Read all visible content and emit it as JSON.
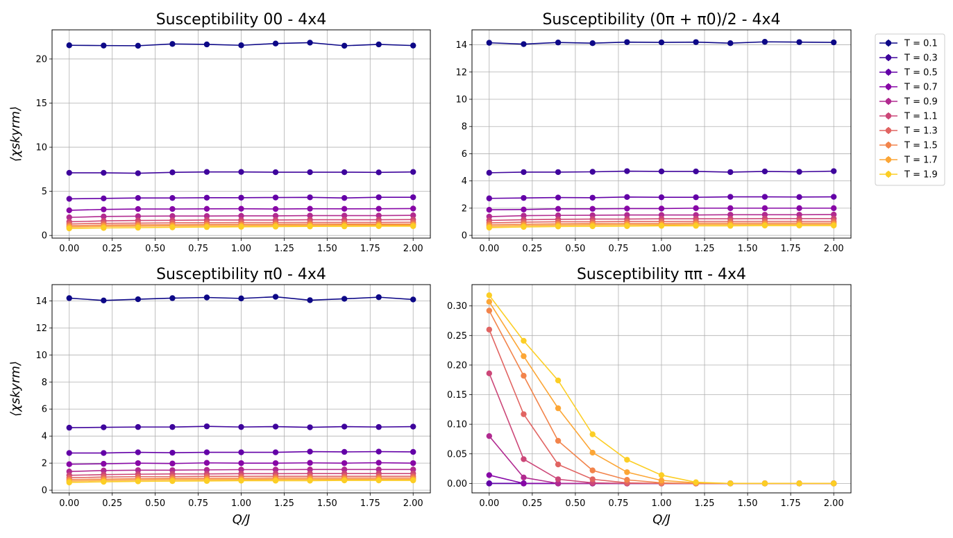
{
  "legend": {
    "placement": "right of figure",
    "entries": [
      "T = 0.1",
      "T = 0.3",
      "T = 0.5",
      "T = 0.7",
      "T = 0.9",
      "T = 1.1",
      "T = 1.3",
      "T = 1.5",
      "T = 1.7",
      "T = 1.9"
    ]
  },
  "series_colors": [
    "#0d0887",
    "#3e049c",
    "#6300a7",
    "#8707a6",
    "#b12a90",
    "#cc4778",
    "#e16462",
    "#f2844b",
    "#fca636",
    "#fcce25"
  ],
  "chart_data": [
    {
      "type": "line",
      "title": "Susceptibility 00 - 4x4",
      "xlabel": "",
      "ylabel": "⟨χskyrm⟩",
      "grid": true,
      "x": [
        0.0,
        0.2,
        0.4,
        0.6,
        0.8,
        1.0,
        1.2,
        1.4,
        1.6,
        1.8,
        2.0
      ],
      "xlim": [
        -0.1,
        2.1
      ],
      "ylim": [
        -0.3,
        23.3
      ],
      "xticks": [
        "0.00",
        "0.25",
        "0.50",
        "0.75",
        "1.00",
        "1.25",
        "1.50",
        "1.75",
        "2.00"
      ],
      "yticks": [
        "0",
        "5",
        "10",
        "15",
        "20"
      ],
      "series": [
        {
          "name": "T = 0.1",
          "values": [
            21.55,
            21.52,
            21.5,
            21.7,
            21.65,
            21.55,
            21.75,
            21.85,
            21.5,
            21.65,
            21.52
          ]
        },
        {
          "name": "T = 0.3",
          "values": [
            7.1,
            7.1,
            7.05,
            7.15,
            7.2,
            7.2,
            7.17,
            7.17,
            7.17,
            7.15,
            7.2
          ]
        },
        {
          "name": "T = 0.5",
          "values": [
            4.15,
            4.2,
            4.25,
            4.25,
            4.28,
            4.28,
            4.3,
            4.32,
            4.25,
            4.33,
            4.33
          ]
        },
        {
          "name": "T = 0.7",
          "values": [
            2.85,
            2.95,
            3.0,
            3.0,
            3.02,
            3.03,
            3.0,
            3.03,
            3.02,
            3.03,
            3.05
          ]
        },
        {
          "name": "T = 0.9",
          "values": [
            2.05,
            2.15,
            2.18,
            2.2,
            2.2,
            2.22,
            2.22,
            2.25,
            2.25,
            2.25,
            2.28
          ]
        },
        {
          "name": "T = 1.1",
          "values": [
            1.55,
            1.65,
            1.7,
            1.72,
            1.75,
            1.75,
            1.75,
            1.78,
            1.78,
            1.78,
            1.8
          ]
        },
        {
          "name": "T = 1.3",
          "values": [
            1.3,
            1.38,
            1.4,
            1.43,
            1.45,
            1.47,
            1.47,
            1.48,
            1.48,
            1.48,
            1.5
          ]
        },
        {
          "name": "T = 1.5",
          "values": [
            1.1,
            1.17,
            1.2,
            1.22,
            1.25,
            1.27,
            1.28,
            1.3,
            1.3,
            1.3,
            1.3
          ]
        },
        {
          "name": "T = 1.7",
          "values": [
            0.95,
            1.02,
            1.05,
            1.08,
            1.1,
            1.12,
            1.15,
            1.15,
            1.17,
            1.17,
            1.18
          ]
        },
        {
          "name": "T = 1.9",
          "values": [
            0.8,
            0.85,
            0.88,
            0.92,
            0.95,
            0.98,
            1.0,
            1.02,
            1.03,
            1.05,
            1.05
          ]
        }
      ]
    },
    {
      "type": "line",
      "title": "Susceptibility (0π + π0)/2 - 4x4",
      "xlabel": "",
      "ylabel": "",
      "grid": true,
      "x": [
        0.0,
        0.2,
        0.4,
        0.6,
        0.8,
        1.0,
        1.2,
        1.4,
        1.6,
        1.8,
        2.0
      ],
      "xlim": [
        -0.1,
        2.1
      ],
      "ylim": [
        -0.2,
        15.1
      ],
      "xticks": [
        "0.00",
        "0.25",
        "0.50",
        "0.75",
        "1.00",
        "1.25",
        "1.50",
        "1.75",
        "2.00"
      ],
      "yticks": [
        "0",
        "2",
        "4",
        "6",
        "8",
        "10",
        "12",
        "14"
      ],
      "series": [
        {
          "name": "T = 0.1",
          "values": [
            14.15,
            14.05,
            14.17,
            14.12,
            14.2,
            14.18,
            14.2,
            14.12,
            14.22,
            14.2,
            14.18
          ]
        },
        {
          "name": "T = 0.3",
          "values": [
            4.6,
            4.65,
            4.65,
            4.67,
            4.72,
            4.7,
            4.7,
            4.65,
            4.7,
            4.67,
            4.72
          ]
        },
        {
          "name": "T = 0.5",
          "values": [
            2.72,
            2.75,
            2.78,
            2.77,
            2.82,
            2.8,
            2.8,
            2.83,
            2.83,
            2.82,
            2.83
          ]
        },
        {
          "name": "T = 0.7",
          "values": [
            1.88,
            1.9,
            1.95,
            1.95,
            1.97,
            1.97,
            2.0,
            2.0,
            2.0,
            2.0,
            2.0
          ]
        },
        {
          "name": "T = 0.9",
          "values": [
            1.38,
            1.45,
            1.47,
            1.48,
            1.5,
            1.5,
            1.5,
            1.52,
            1.52,
            1.52,
            1.53
          ]
        },
        {
          "name": "T = 1.1",
          "values": [
            1.1,
            1.15,
            1.18,
            1.2,
            1.2,
            1.22,
            1.22,
            1.22,
            1.23,
            1.23,
            1.23
          ]
        },
        {
          "name": "T = 1.3",
          "values": [
            0.92,
            0.97,
            1.0,
            1.0,
            1.02,
            1.02,
            1.03,
            1.03,
            1.03,
            1.03,
            1.03
          ]
        },
        {
          "name": "T = 1.5",
          "values": [
            0.78,
            0.82,
            0.85,
            0.87,
            0.88,
            0.88,
            0.9,
            0.9,
            0.9,
            0.9,
            0.9
          ]
        },
        {
          "name": "T = 1.7",
          "values": [
            0.67,
            0.72,
            0.75,
            0.77,
            0.78,
            0.78,
            0.8,
            0.8,
            0.8,
            0.8,
            0.8
          ]
        },
        {
          "name": "T = 1.9",
          "values": [
            0.57,
            0.62,
            0.65,
            0.67,
            0.68,
            0.7,
            0.7,
            0.7,
            0.72,
            0.72,
            0.72
          ]
        }
      ]
    },
    {
      "type": "line",
      "title": "Susceptibility π0 - 4x4",
      "xlabel": "Q/J",
      "ylabel": "⟨χskyrm⟩",
      "grid": true,
      "x": [
        0.0,
        0.2,
        0.4,
        0.6,
        0.8,
        1.0,
        1.2,
        1.4,
        1.6,
        1.8,
        2.0
      ],
      "xlim": [
        -0.1,
        2.1
      ],
      "ylim": [
        -0.2,
        15.2
      ],
      "xticks": [
        "0.00",
        "0.25",
        "0.50",
        "0.75",
        "1.00",
        "1.25",
        "1.50",
        "1.75",
        "2.00"
      ],
      "yticks": [
        "0",
        "2",
        "4",
        "6",
        "8",
        "10",
        "12",
        "14"
      ],
      "series": [
        {
          "name": "T = 0.1",
          "values": [
            14.2,
            14.03,
            14.12,
            14.2,
            14.25,
            14.18,
            14.3,
            14.05,
            14.15,
            14.27,
            14.1
          ]
        },
        {
          "name": "T = 0.3",
          "values": [
            4.62,
            4.65,
            4.67,
            4.67,
            4.72,
            4.67,
            4.7,
            4.65,
            4.7,
            4.67,
            4.7
          ]
        },
        {
          "name": "T = 0.5",
          "values": [
            2.75,
            2.75,
            2.8,
            2.77,
            2.8,
            2.8,
            2.8,
            2.85,
            2.83,
            2.85,
            2.83
          ]
        },
        {
          "name": "T = 0.7",
          "values": [
            1.92,
            1.95,
            2.0,
            1.97,
            2.02,
            2.0,
            2.0,
            2.02,
            2.0,
            2.03,
            2.0
          ]
        },
        {
          "name": "T = 0.9",
          "values": [
            1.38,
            1.45,
            1.48,
            1.48,
            1.5,
            1.52,
            1.52,
            1.53,
            1.53,
            1.53,
            1.53
          ]
        },
        {
          "name": "T = 1.1",
          "values": [
            1.1,
            1.15,
            1.18,
            1.2,
            1.2,
            1.22,
            1.22,
            1.23,
            1.23,
            1.23,
            1.23
          ]
        },
        {
          "name": "T = 1.3",
          "values": [
            0.92,
            0.97,
            1.0,
            1.0,
            1.02,
            1.02,
            1.03,
            1.03,
            1.03,
            1.03,
            1.03
          ]
        },
        {
          "name": "T = 1.5",
          "values": [
            0.78,
            0.82,
            0.85,
            0.87,
            0.88,
            0.88,
            0.9,
            0.9,
            0.9,
            0.9,
            0.9
          ]
        },
        {
          "name": "T = 1.7",
          "values": [
            0.67,
            0.72,
            0.75,
            0.77,
            0.78,
            0.78,
            0.8,
            0.8,
            0.8,
            0.8,
            0.8
          ]
        },
        {
          "name": "T = 1.9",
          "values": [
            0.57,
            0.62,
            0.65,
            0.67,
            0.68,
            0.7,
            0.7,
            0.7,
            0.72,
            0.72,
            0.72
          ]
        }
      ]
    },
    {
      "type": "line",
      "title": "Susceptibility ππ - 4x4",
      "xlabel": "Q/J",
      "ylabel": "",
      "grid": true,
      "x": [
        0.0,
        0.2,
        0.4,
        0.6,
        0.8,
        1.0,
        1.2,
        1.4,
        1.6,
        1.8,
        2.0
      ],
      "xlim": [
        -0.1,
        2.1
      ],
      "ylim": [
        -0.016,
        0.336
      ],
      "xticks": [
        "0.00",
        "0.25",
        "0.50",
        "0.75",
        "1.00",
        "1.25",
        "1.50",
        "1.75",
        "2.00"
      ],
      "yticks": [
        "0.00",
        "0.05",
        "0.10",
        "0.15",
        "0.20",
        "0.25",
        "0.30"
      ],
      "series": [
        {
          "name": "T = 0.1",
          "values": [
            0,
            0,
            0,
            0,
            0,
            0,
            0,
            0,
            0,
            0,
            0
          ]
        },
        {
          "name": "T = 0.3",
          "values": [
            0,
            0,
            0,
            0,
            0,
            0,
            0,
            0,
            0,
            0,
            0
          ]
        },
        {
          "name": "T = 0.5",
          "values": [
            0,
            0,
            0,
            0,
            0,
            0,
            0,
            0,
            0,
            0,
            0
          ]
        },
        {
          "name": "T = 0.7",
          "values": [
            0.014,
            0.0,
            0.0,
            0,
            0,
            0,
            0,
            0,
            0,
            0,
            0
          ]
        },
        {
          "name": "T = 0.9",
          "values": [
            0.08,
            0.01,
            0.0,
            0.0,
            0,
            0,
            0,
            0,
            0,
            0,
            0
          ]
        },
        {
          "name": "T = 1.1",
          "values": [
            0.186,
            0.041,
            0.007,
            0.001,
            0.0,
            0,
            0,
            0,
            0,
            0,
            0
          ]
        },
        {
          "name": "T = 1.3",
          "values": [
            0.26,
            0.117,
            0.032,
            0.007,
            0.001,
            0.0,
            0,
            0,
            0,
            0,
            0
          ]
        },
        {
          "name": "T = 1.5",
          "values": [
            0.292,
            0.182,
            0.072,
            0.022,
            0.006,
            0.001,
            0.0,
            0,
            0,
            0,
            0
          ]
        },
        {
          "name": "T = 1.7",
          "values": [
            0.307,
            0.215,
            0.127,
            0.052,
            0.019,
            0.005,
            0.001,
            0.0,
            0,
            0,
            0
          ]
        },
        {
          "name": "T = 1.9",
          "values": [
            0.318,
            0.241,
            0.174,
            0.083,
            0.04,
            0.014,
            0.002,
            0.0,
            0,
            0,
            0
          ]
        }
      ]
    }
  ]
}
